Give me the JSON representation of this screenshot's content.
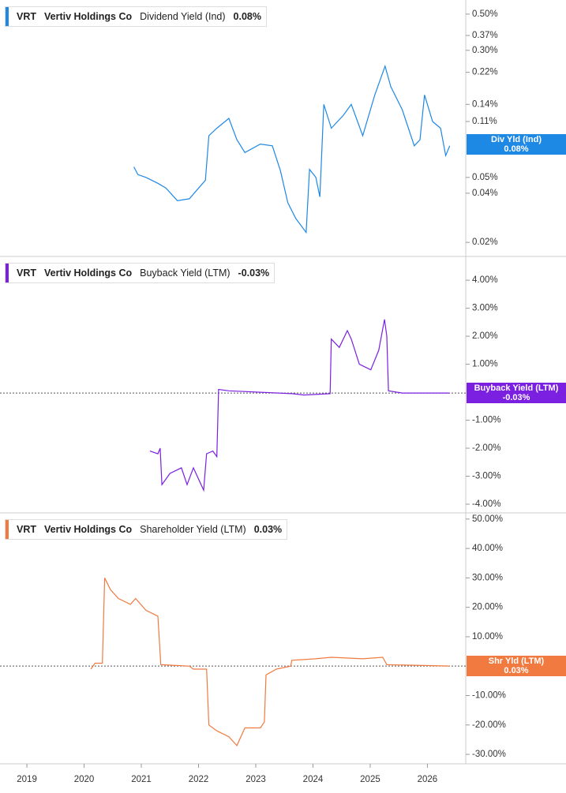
{
  "chart_data": [
    {
      "type": "line",
      "ticker": "VRT",
      "company": "Vertiv Holdings Co",
      "metric": "Dividend Yield (Ind)",
      "tag_label": "Div Yld (Ind)",
      "current": {
        "value": 0.08,
        "label": "0.08%"
      },
      "color": "#1e88e5",
      "log": true,
      "x": [
        2020.87,
        2020.94,
        2021.08,
        2021.29,
        2021.43,
        2021.63,
        2021.84,
        2022.05,
        2022.12,
        2022.18,
        2022.32,
        2022.53,
        2022.67,
        2022.81,
        2023.08,
        2023.29,
        2023.43,
        2023.56,
        2023.7,
        2023.88,
        2023.94,
        2024.05,
        2024.12,
        2024.19,
        2024.32,
        2024.53,
        2024.67,
        2024.87,
        2025.08,
        2025.26,
        2025.36,
        2025.56,
        2025.77,
        2025.87,
        2025.95,
        2026.09,
        2026.23,
        2026.32,
        2026.39
      ],
      "values": [
        0.058,
        0.052,
        0.05,
        0.046,
        0.043,
        0.036,
        0.037,
        0.045,
        0.048,
        0.09,
        0.1,
        0.115,
        0.085,
        0.071,
        0.08,
        0.078,
        0.055,
        0.035,
        0.028,
        0.023,
        0.056,
        0.05,
        0.038,
        0.14,
        0.1,
        0.12,
        0.14,
        0.09,
        0.16,
        0.24,
        0.18,
        0.13,
        0.078,
        0.085,
        0.16,
        0.11,
        0.1,
        0.068,
        0.078
      ],
      "xlim": [
        2018.53,
        2026.67
      ],
      "ylim": [
        0.0164,
        0.61
      ],
      "yticks": [
        {
          "value": 0.5,
          "label": "0.50%"
        },
        {
          "value": 0.37,
          "label": "0.37%"
        },
        {
          "value": 0.3,
          "label": "0.30%"
        },
        {
          "value": 0.22,
          "label": "0.22%"
        },
        {
          "value": 0.14,
          "label": "0.14%"
        },
        {
          "value": 0.11,
          "label": "0.11%"
        },
        {
          "value": 0.05,
          "label": "0.05%"
        },
        {
          "value": 0.04,
          "label": "0.04%"
        },
        {
          "value": 0.02,
          "label": "0.02%"
        }
      ]
    },
    {
      "type": "line",
      "ticker": "VRT",
      "company": "Vertiv Holdings Co",
      "metric": "Buyback Yield (LTM)",
      "tag_label": "Buyback Yield (LTM)",
      "current": {
        "value": -0.03,
        "label": "-0.03%"
      },
      "color": "#7b1fe0",
      "log": false,
      "x": [
        2021.15,
        2021.29,
        2021.33,
        2021.36,
        2021.5,
        2021.7,
        2021.8,
        2021.91,
        2022.09,
        2022.14,
        2022.25,
        2022.32,
        2022.35,
        2022.53,
        2023.63,
        2023.84,
        2024.3,
        2024.32,
        2024.46,
        2024.6,
        2024.67,
        2024.81,
        2025.01,
        2025.15,
        2025.25,
        2025.29,
        2025.32,
        2025.56,
        2026.39
      ],
      "values": [
        -2.1,
        -2.2,
        -2.0,
        -3.3,
        -2.9,
        -2.7,
        -3.3,
        -2.7,
        -3.5,
        -2.2,
        -2.1,
        -2.3,
        0.1,
        0.05,
        -0.05,
        -0.1,
        -0.05,
        1.9,
        1.6,
        2.2,
        1.9,
        1.0,
        0.8,
        1.5,
        2.6,
        2.0,
        0.05,
        -0.03,
        -0.03
      ],
      "xlim": [
        2018.53,
        2026.67
      ],
      "ylim": [
        -4.31,
        4.85
      ],
      "yticks": [
        {
          "value": 4,
          "label": "4.00%"
        },
        {
          "value": 3,
          "label": "3.00%"
        },
        {
          "value": 2,
          "label": "2.00%"
        },
        {
          "value": 1,
          "label": "1.00%"
        },
        {
          "value": -1,
          "label": "-1.00%"
        },
        {
          "value": -2,
          "label": "-2.00%"
        },
        {
          "value": -3,
          "label": "-3.00%"
        },
        {
          "value": -4,
          "label": "-4.00%"
        }
      ]
    },
    {
      "type": "line",
      "ticker": "VRT",
      "company": "Vertiv Holdings Co",
      "metric": "Shareholder Yield (LTM)",
      "tag_label": "Shr Yld (LTM)",
      "current": {
        "value": 0.03,
        "label": "0.03%"
      },
      "color": "#f07a40",
      "log": false,
      "x": [
        2020.12,
        2020.19,
        2020.32,
        2020.36,
        2020.46,
        2020.6,
        2020.81,
        2020.9,
        2021.08,
        2021.29,
        2021.34,
        2021.84,
        2021.91,
        2022.14,
        2022.18,
        2022.32,
        2022.53,
        2022.67,
        2022.81,
        2023.08,
        2023.15,
        2023.18,
        2023.36,
        2023.61,
        2023.63,
        2024.05,
        2024.32,
        2024.87,
        2025.22,
        2025.29,
        2026.39
      ],
      "values": [
        -1,
        1,
        1,
        30,
        26,
        23,
        21,
        23,
        19,
        17,
        0.5,
        0,
        -1,
        -1,
        -20,
        -22,
        -24,
        -27,
        -21,
        -21,
        -19,
        -3,
        -1,
        0,
        2,
        2.5,
        3,
        2.5,
        3,
        0.5,
        0.03
      ],
      "xlim": [
        2018.53,
        2026.67
      ],
      "ylim": [
        -33.2,
        52.1
      ],
      "yticks": [
        {
          "value": 50,
          "label": "50.00%"
        },
        {
          "value": 40,
          "label": "40.00%"
        },
        {
          "value": 30,
          "label": "30.00%"
        },
        {
          "value": 20,
          "label": "20.00%"
        },
        {
          "value": 10,
          "label": "10.00%"
        },
        {
          "value": -10,
          "label": "-10.00%"
        },
        {
          "value": -20,
          "label": "-20.00%"
        },
        {
          "value": -30,
          "label": "-30.00%"
        }
      ],
      "xticks": [
        2019,
        2020,
        2021,
        2022,
        2023,
        2024,
        2025,
        2026
      ]
    }
  ]
}
